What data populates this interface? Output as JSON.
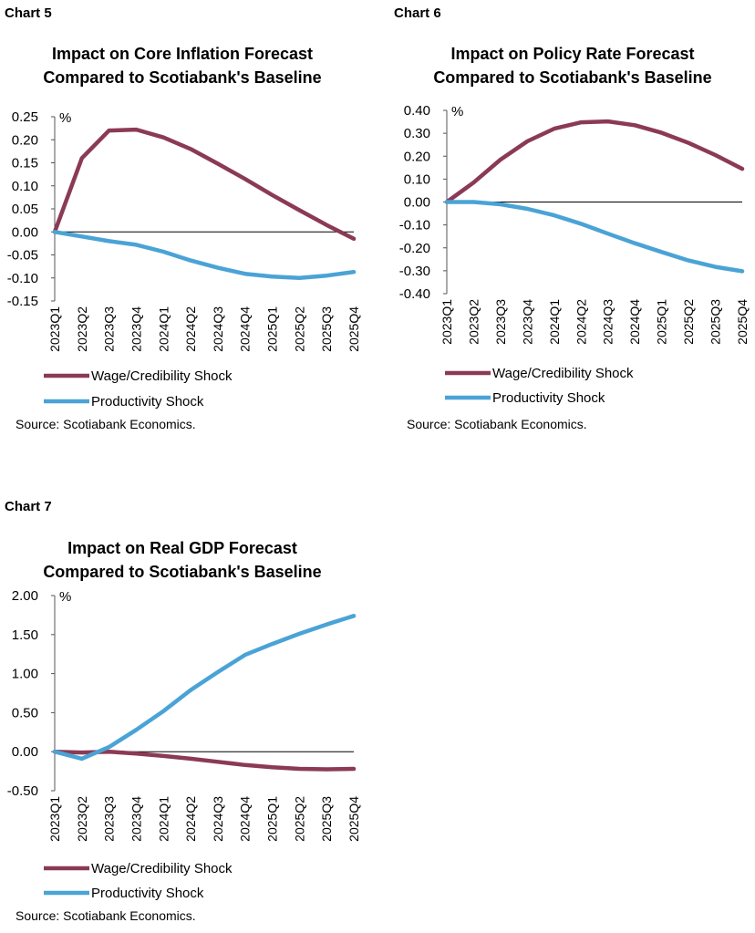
{
  "colors": {
    "wage": "#8b3a55",
    "productivity": "#4aa3d6",
    "axis": "#555555",
    "zero_line": "#000000"
  },
  "charts": [
    {
      "label": "Chart 5",
      "title_line1": "Impact on Core Inflation Forecast",
      "title_line2": "Compared to Scotiabank's Baseline",
      "unit": "%",
      "source": "Source: Scotiabank Economics."
    },
    {
      "label": "Chart 6",
      "title_line1": "Impact on Policy Rate Forecast",
      "title_line2": "Compared to Scotiabank's Baseline",
      "unit": "%",
      "source": "Source: Scotiabank Economics."
    },
    {
      "label": "Chart 7",
      "title_line1": "Impact on Real GDP Forecast",
      "title_line2": "Compared to Scotiabank's Baseline",
      "unit": "%",
      "source": "Source: Scotiabank Economics."
    }
  ],
  "chart_data": [
    {
      "type": "line",
      "title": "Impact on Core Inflation Forecast Compared to Scotiabank's Baseline",
      "ylabel": "%",
      "categories": [
        "2023Q1",
        "2023Q2",
        "2023Q3",
        "2023Q4",
        "2024Q1",
        "2024Q2",
        "2024Q3",
        "2024Q4",
        "2025Q1",
        "2025Q2",
        "2025Q3",
        "2025Q4"
      ],
      "ylim": [
        -0.15,
        0.25
      ],
      "yticks": [
        "0.25",
        "0.20",
        "0.15",
        "0.10",
        "0.05",
        "0.00",
        "-0.05",
        "-0.10",
        "-0.15"
      ],
      "series": [
        {
          "name": "Wage/Credibility Shock",
          "values": [
            0.0,
            0.16,
            0.22,
            0.222,
            0.205,
            0.18,
            0.148,
            0.115,
            0.08,
            0.047,
            0.015,
            -0.015
          ]
        },
        {
          "name": "Productivity Shock",
          "values": [
            0.0,
            -0.01,
            -0.02,
            -0.028,
            -0.043,
            -0.062,
            -0.078,
            -0.091,
            -0.097,
            -0.1,
            -0.095,
            -0.087
          ]
        }
      ],
      "legend": "bottom"
    },
    {
      "type": "line",
      "title": "Impact on Policy Rate Forecast Compared to Scotiabank's Baseline",
      "ylabel": "%",
      "categories": [
        "2023Q1",
        "2023Q2",
        "2023Q3",
        "2023Q4",
        "2024Q1",
        "2024Q2",
        "2024Q3",
        "2024Q4",
        "2025Q1",
        "2025Q2",
        "2025Q3",
        "2025Q4"
      ],
      "ylim": [
        -0.4,
        0.4
      ],
      "yticks": [
        "0.40",
        "0.30",
        "0.20",
        "0.10",
        "0.00",
        "-0.10",
        "-0.20",
        "-0.30",
        "-0.40"
      ],
      "series": [
        {
          "name": "Wage/Credibility Shock",
          "values": [
            0.0,
            0.085,
            0.185,
            0.265,
            0.32,
            0.348,
            0.352,
            0.335,
            0.302,
            0.258,
            0.205,
            0.145
          ]
        },
        {
          "name": "Productivity Shock",
          "values": [
            0.0,
            0.0,
            -0.01,
            -0.03,
            -0.058,
            -0.095,
            -0.138,
            -0.18,
            -0.218,
            -0.255,
            -0.283,
            -0.302
          ]
        }
      ],
      "legend": "bottom"
    },
    {
      "type": "line",
      "title": "Impact on Real GDP Forecast Compared to Scotiabank's Baseline",
      "ylabel": "%",
      "categories": [
        "2023Q1",
        "2023Q2",
        "2023Q3",
        "2023Q4",
        "2024Q1",
        "2024Q2",
        "2024Q3",
        "2024Q4",
        "2025Q1",
        "2025Q2",
        "2025Q3",
        "2025Q4"
      ],
      "ylim": [
        -0.5,
        2.0
      ],
      "yticks": [
        "2.00",
        "1.50",
        "1.00",
        "0.50",
        "0.00",
        "-0.50"
      ],
      "series": [
        {
          "name": "Wage/Credibility Shock",
          "values": [
            0.0,
            -0.01,
            0.0,
            -0.025,
            -0.055,
            -0.09,
            -0.13,
            -0.17,
            -0.2,
            -0.22,
            -0.225,
            -0.22
          ]
        },
        {
          "name": "Productivity Shock",
          "values": [
            0.0,
            -0.09,
            0.06,
            0.28,
            0.52,
            0.79,
            1.02,
            1.24,
            1.38,
            1.51,
            1.63,
            1.74
          ]
        }
      ],
      "legend": "bottom"
    }
  ]
}
